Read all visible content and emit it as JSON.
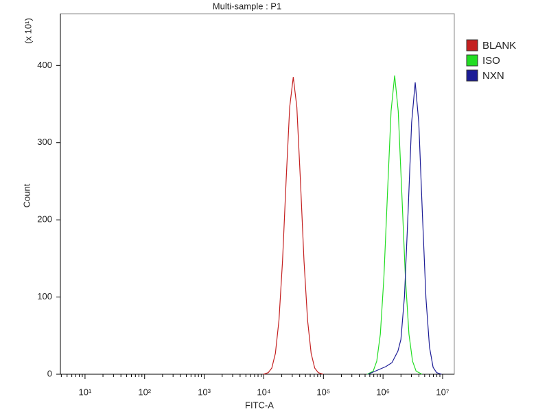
{
  "chart_data": {
    "type": "line",
    "title": "Multi-sample : P1",
    "xlabel": "FITC-A",
    "ylabel": "Count",
    "y_multiplier": "(x 10¹)",
    "xscale": "log",
    "xlim": [
      3.86,
      15700000
    ],
    "ylim": [
      0,
      467
    ],
    "xticks": [
      {
        "value": 10,
        "label": "10¹"
      },
      {
        "value": 100,
        "label": "10²"
      },
      {
        "value": 1000,
        "label": "10³"
      },
      {
        "value": 10000,
        "label": "10⁴"
      },
      {
        "value": 100000,
        "label": "10⁵"
      },
      {
        "value": 1000000,
        "label": "10⁶"
      },
      {
        "value": 10000000,
        "label": "10⁷"
      }
    ],
    "yticks": [
      0,
      100,
      200,
      300,
      400
    ],
    "legend": "right",
    "series": [
      {
        "name": "BLANK",
        "color": "#c42020",
        "x": [
          9860,
          11860,
          13610,
          15630,
          17950,
          20610,
          23660,
          27160,
          31190,
          35810,
          41110,
          47210,
          54200,
          62230,
          71450,
          82040,
          98620
        ],
        "values": [
          0,
          2,
          8,
          27,
          70,
          147,
          251,
          346,
          385,
          346,
          251,
          147,
          70,
          27,
          8,
          2,
          0
        ]
      },
      {
        "name": "ISO",
        "color": "#22dd22",
        "x": [
          543300,
          683900,
          785200,
          901600,
          1035000,
          1189000,
          1365000,
          1567000,
          1799000,
          2065000,
          2371000,
          2723000,
          3126000,
          3589000,
          4519000
        ],
        "values": [
          0,
          4,
          17,
          52,
          126,
          235,
          341,
          387,
          341,
          235,
          126,
          52,
          17,
          4,
          0
        ]
      },
      {
        "name": "NXN",
        "color": "#1c1c96",
        "x": [
          562300,
          794300,
          1122000,
          1413000,
          1778000,
          1995000,
          2291000,
          2630000,
          3020000,
          3467000,
          3981000,
          4571000,
          5248000,
          6026000,
          6918000,
          7943000,
          9550000
        ],
        "values": [
          0,
          5,
          10,
          15,
          30,
          45,
          101,
          209,
          326,
          378,
          326,
          209,
          99,
          35,
          9,
          2,
          0
        ]
      }
    ]
  }
}
